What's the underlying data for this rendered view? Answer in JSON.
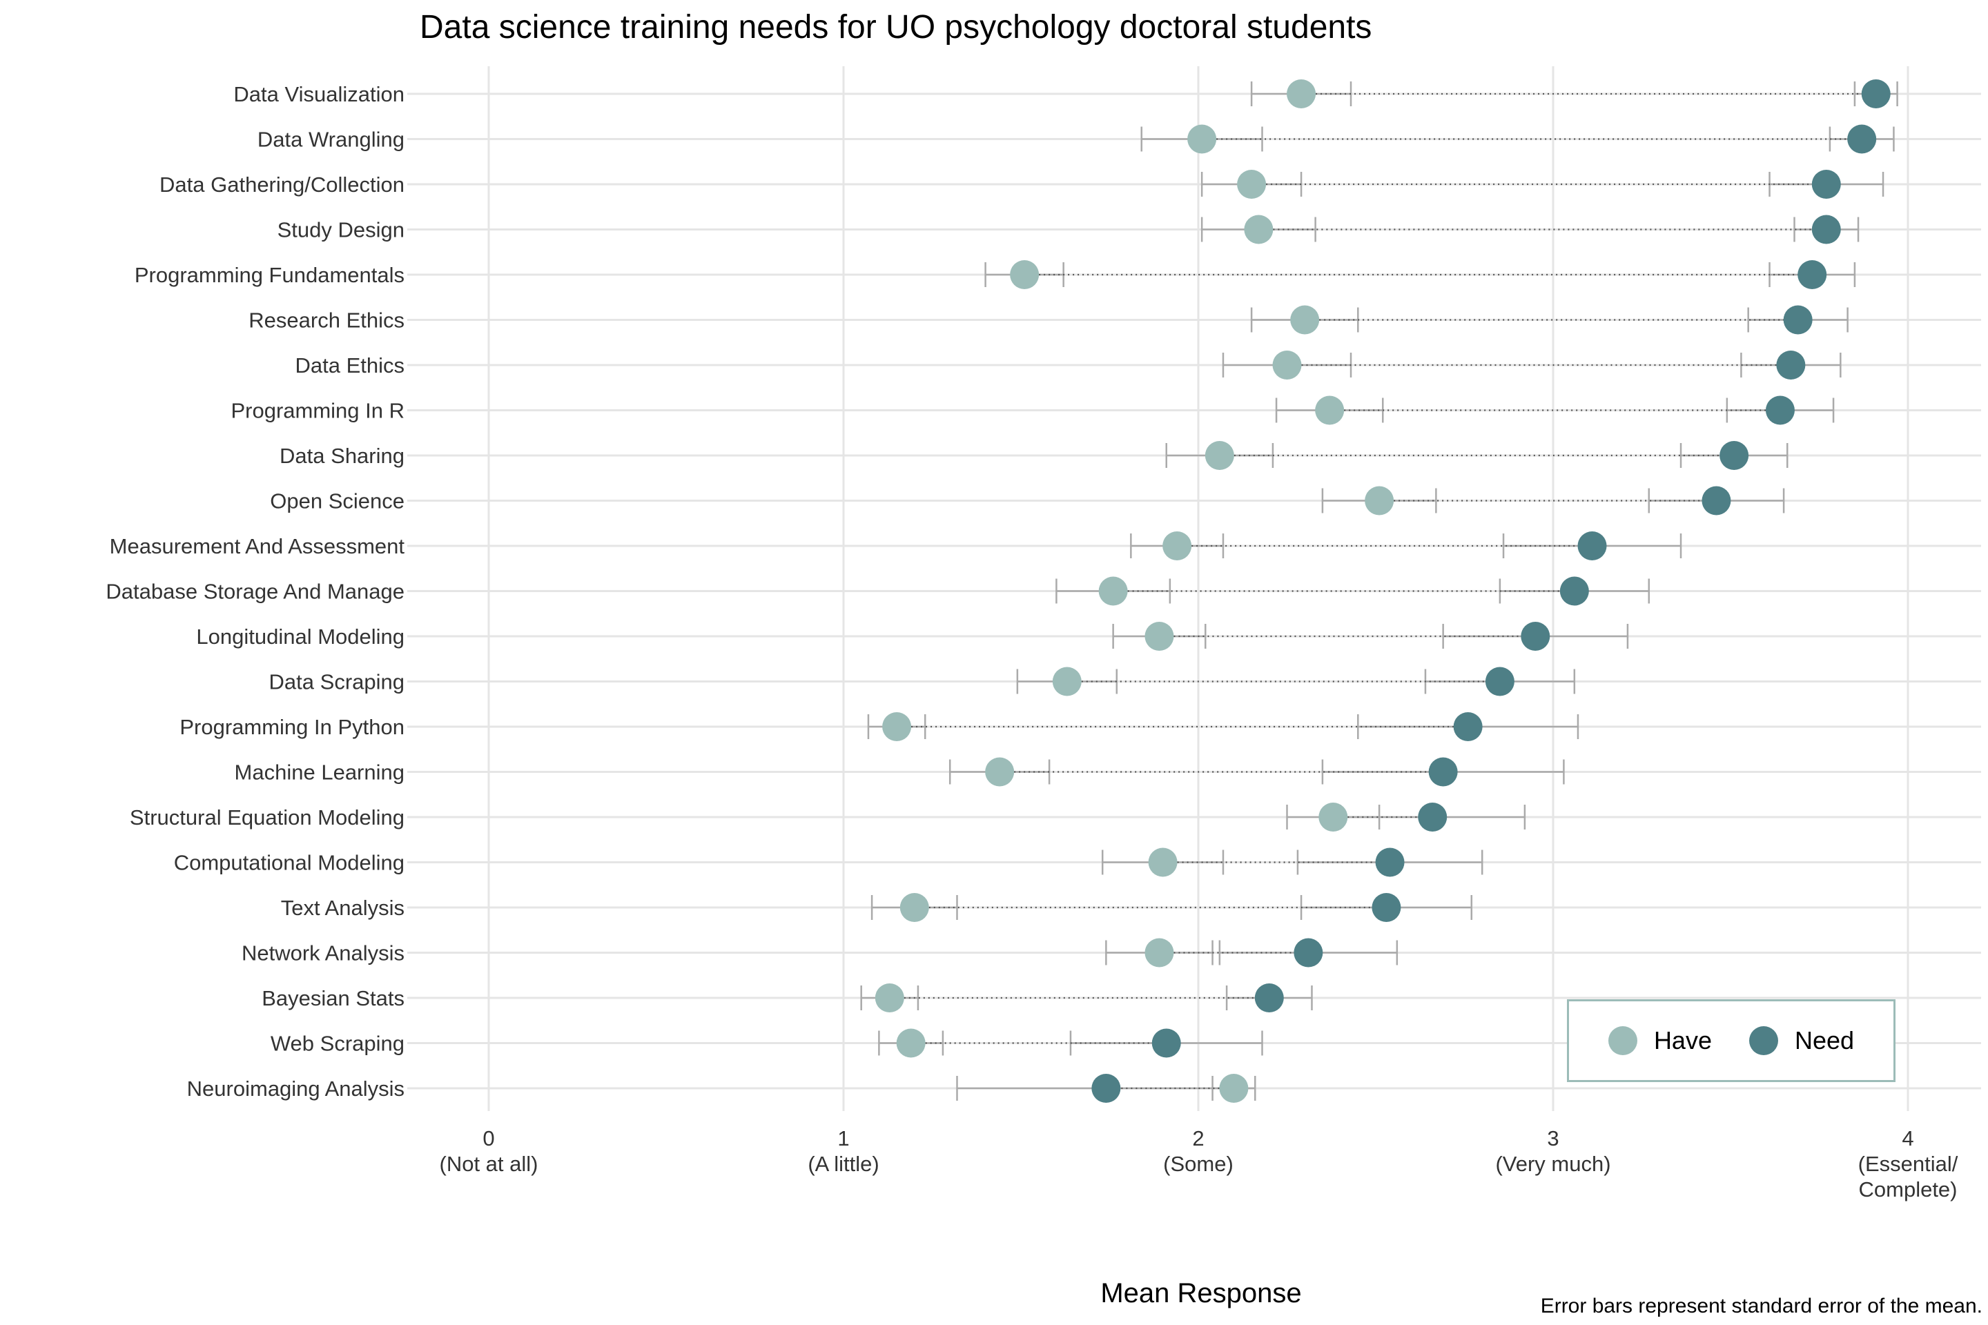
{
  "chart_data": {
    "type": "scatter",
    "title": "Data science training needs for UO psychology doctoral students",
    "xlabel": "Mean Response",
    "ylabel": "",
    "caption": "Error bars represent standard error of the mean.",
    "xlim": [
      -0.2,
      4.2
    ],
    "x_ticks": [
      {
        "value": 0,
        "label": [
          "0",
          "(Not at all)"
        ]
      },
      {
        "value": 1,
        "label": [
          "1",
          "(A little)"
        ]
      },
      {
        "value": 2,
        "label": [
          "2",
          "(Some)"
        ]
      },
      {
        "value": 3,
        "label": [
          "3",
          "(Very much)"
        ]
      },
      {
        "value": 4,
        "label": [
          "4",
          "(Essential/",
          "Complete)"
        ]
      }
    ],
    "grid": true,
    "legend_position": "bottom-right",
    "colors": {
      "have": "#9cbcb8",
      "need": "#4e7f86",
      "errorbar": "#aaaaaa",
      "connector": "#555555",
      "grid": "#e5e5e5"
    },
    "series": [
      {
        "name": "Have",
        "key": "have"
      },
      {
        "name": "Need",
        "key": "need"
      }
    ],
    "categories": [
      "Data Visualization",
      "Data Wrangling",
      "Data Gathering/Collection",
      "Study Design",
      "Programming Fundamentals",
      "Research Ethics",
      "Data Ethics",
      "Programming In R",
      "Data Sharing",
      "Open Science",
      "Measurement And Assessment",
      "Database Storage And Manage",
      "Longitudinal Modeling",
      "Data Scraping",
      "Programming In Python",
      "Machine Learning",
      "Structural Equation Modeling",
      "Computational Modeling",
      "Text Analysis",
      "Network Analysis",
      "Bayesian Stats",
      "Web Scraping",
      "Neuroimaging Analysis"
    ],
    "rows": [
      {
        "category": "Data Visualization",
        "have": 2.29,
        "have_se": 0.14,
        "need": 3.91,
        "need_se": 0.06
      },
      {
        "category": "Data Wrangling",
        "have": 2.01,
        "have_se": 0.17,
        "need": 3.87,
        "need_se": 0.09
      },
      {
        "category": "Data Gathering/Collection",
        "have": 2.15,
        "have_se": 0.14,
        "need": 3.77,
        "need_se": 0.16
      },
      {
        "category": "Study Design",
        "have": 2.17,
        "have_se": 0.16,
        "need": 3.77,
        "need_se": 0.09
      },
      {
        "category": "Programming Fundamentals",
        "have": 1.51,
        "have_se": 0.11,
        "need": 3.73,
        "need_se": 0.12
      },
      {
        "category": "Research Ethics",
        "have": 2.3,
        "have_se": 0.15,
        "need": 3.69,
        "need_se": 0.14
      },
      {
        "category": "Data Ethics",
        "have": 2.25,
        "have_se": 0.18,
        "need": 3.67,
        "need_se": 0.14
      },
      {
        "category": "Programming In R",
        "have": 2.37,
        "have_se": 0.15,
        "need": 3.64,
        "need_se": 0.15
      },
      {
        "category": "Data Sharing",
        "have": 2.06,
        "have_se": 0.15,
        "need": 3.51,
        "need_se": 0.15
      },
      {
        "category": "Open Science",
        "have": 2.51,
        "have_se": 0.16,
        "need": 3.46,
        "need_se": 0.19
      },
      {
        "category": "Measurement And Assessment",
        "have": 1.94,
        "have_se": 0.13,
        "need": 3.11,
        "need_se": 0.25
      },
      {
        "category": "Database Storage And Manage",
        "have": 1.76,
        "have_se": 0.16,
        "need": 3.06,
        "need_se": 0.21
      },
      {
        "category": "Longitudinal Modeling",
        "have": 1.89,
        "have_se": 0.13,
        "need": 2.95,
        "need_se": 0.26
      },
      {
        "category": "Data Scraping",
        "have": 1.63,
        "have_se": 0.14,
        "need": 2.85,
        "need_se": 0.21
      },
      {
        "category": "Programming In Python",
        "have": 1.15,
        "have_se": 0.08,
        "need": 2.76,
        "need_se": 0.31
      },
      {
        "category": "Machine Learning",
        "have": 1.44,
        "have_se": 0.14,
        "need": 2.69,
        "need_se": 0.34
      },
      {
        "category": "Structural Equation Modeling",
        "have": 2.38,
        "have_se": 0.13,
        "need": 2.66,
        "need_se": 0.26
      },
      {
        "category": "Computational Modeling",
        "have": 1.9,
        "have_se": 0.17,
        "need": 2.54,
        "need_se": 0.26
      },
      {
        "category": "Text Analysis",
        "have": 1.2,
        "have_se": 0.12,
        "need": 2.53,
        "need_se": 0.24
      },
      {
        "category": "Network Analysis",
        "have": 1.89,
        "have_se": 0.15,
        "need": 2.31,
        "need_se": 0.25
      },
      {
        "category": "Bayesian Stats",
        "have": 1.13,
        "have_se": 0.08,
        "need": 2.2,
        "need_se": 0.12
      },
      {
        "category": "Web Scraping",
        "have": 1.19,
        "have_se": 0.09,
        "need": 1.91,
        "need_se": 0.27
      },
      {
        "category": "Neuroimaging Analysis",
        "have": 2.1,
        "have_se": 0.06,
        "need": 1.74,
        "need_se": 0.42
      }
    ]
  }
}
